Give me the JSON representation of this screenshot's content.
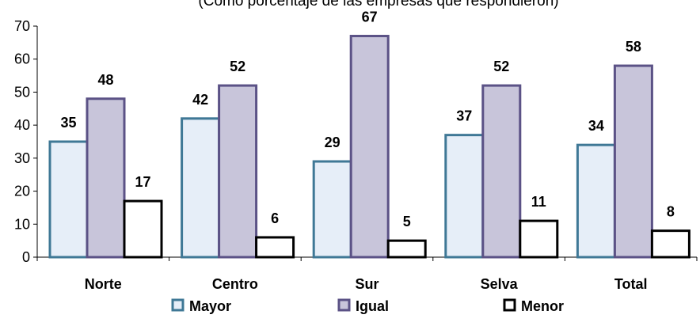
{
  "chart_data": {
    "type": "bar",
    "subtitle": "(Como porcentaje de las empresas que respondieron)",
    "categories": [
      "Norte",
      "Centro",
      "Sur",
      "Selva",
      "Total"
    ],
    "series": [
      {
        "name": "Mayor",
        "values": [
          35,
          42,
          29,
          37,
          34
        ],
        "fill": "#e6eef8",
        "stroke": "#3f7896"
      },
      {
        "name": "Igual",
        "values": [
          48,
          52,
          67,
          52,
          58
        ],
        "fill": "#c8c5da",
        "stroke": "#5b5286"
      },
      {
        "name": "Menor",
        "values": [
          17,
          6,
          5,
          11,
          8
        ],
        "fill": "#ffffff",
        "stroke": "#000000"
      }
    ],
    "ylim": [
      0,
      70
    ],
    "yticks": [
      "0",
      "10",
      "20",
      "30",
      "40",
      "50",
      "60",
      "70"
    ],
    "legend_position": "bottom",
    "grid": false
  }
}
